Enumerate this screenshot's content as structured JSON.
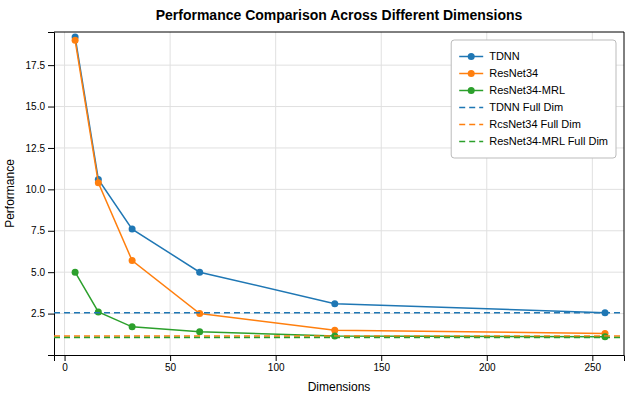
{
  "chart_data": {
    "type": "line",
    "title": "Performance Comparison Across Different Dimensions",
    "xlabel": "Dimensions",
    "ylabel": "Performance",
    "series": [
      {
        "name": "TDNN",
        "color": "#1f77b4",
        "marker": "circle",
        "line_style": "solid",
        "x": [
          5,
          16,
          32,
          64,
          128,
          256
        ],
        "values": [
          19.2,
          10.6,
          7.6,
          5.0,
          3.1,
          2.55
        ]
      },
      {
        "name": "ResNet34",
        "color": "#ff7f0e",
        "marker": "circle",
        "line_style": "solid",
        "x": [
          5,
          16,
          32,
          64,
          128,
          256
        ],
        "values": [
          19.0,
          10.4,
          5.7,
          2.5,
          1.5,
          1.3
        ]
      },
      {
        "name": "ResNet34-MRL",
        "color": "#2ca02c",
        "marker": "circle",
        "line_style": "solid",
        "x": [
          5,
          16,
          32,
          64,
          128,
          256
        ],
        "values": [
          5.0,
          2.6,
          1.7,
          1.4,
          1.15,
          1.1
        ]
      },
      {
        "name": "TDNN Full Dim",
        "type": "hline",
        "color": "#1f77b4",
        "line_style": "dashed",
        "values": [
          2.55
        ]
      },
      {
        "name": "RcsNet34 Full Dim",
        "type": "hline",
        "color": "#ff7f0e",
        "line_style": "dashed",
        "values": [
          1.15
        ]
      },
      {
        "name": "ResNet34-MRL Full Dim",
        "type": "hline",
        "color": "#2ca02c",
        "line_style": "dashed",
        "values": [
          1.05
        ]
      }
    ],
    "xlim": [
      -5,
      265
    ],
    "ylim": [
      0,
      19.5
    ],
    "xticks": [
      0,
      50,
      100,
      150,
      200,
      250
    ],
    "yticks": [
      2.5,
      {
        "value": 5,
        "label": "5.0"
      },
      7.5,
      {
        "value": 10,
        "label": "10.0"
      },
      12.5,
      {
        "value": 15,
        "label": "15.0"
      },
      17.5
    ],
    "grid": true,
    "legend": "upper right"
  }
}
